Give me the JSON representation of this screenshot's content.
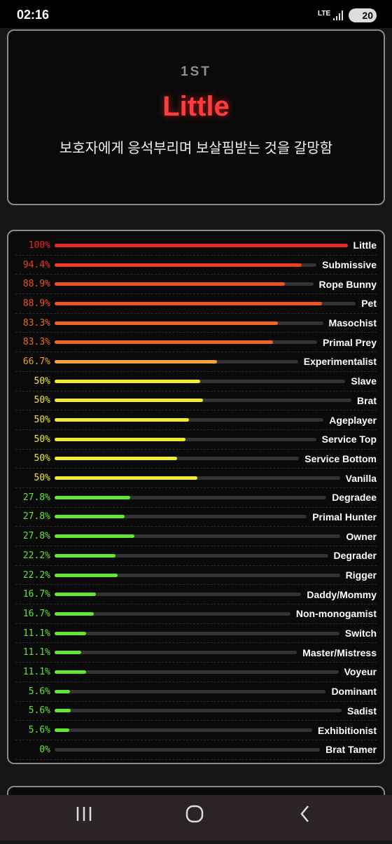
{
  "status_bar": {
    "time": "02:16",
    "network": "LTE",
    "battery": "20"
  },
  "top_result": {
    "rank": "1ST",
    "name": "Little",
    "description": "보호자에게 응석부리며 보살핌받는 것을 갈망함"
  },
  "results": {
    "names": [
      "Little",
      "Submissive",
      "Rope Bunny",
      "Pet",
      "Masochist",
      "Primal Prey",
      "Experimentalist",
      "Slave",
      "Brat",
      "Ageplayer",
      "Service Top",
      "Service Bottom",
      "Vanilla",
      "Degradee",
      "Primal Hunter",
      "Owner",
      "Degrader",
      "Rigger",
      "Daddy/Mommy",
      "Non-monogamist",
      "Switch",
      "Master/Mistress",
      "Voyeur",
      "Dominant",
      "Sadist",
      "Exhibitionist",
      "Brat Tamer"
    ],
    "values": [
      100,
      94.4,
      88.9,
      88.9,
      83.3,
      83.3,
      66.7,
      50,
      50,
      50,
      50,
      50,
      50,
      27.8,
      27.8,
      27.8,
      22.2,
      22.2,
      16.7,
      16.7,
      11.1,
      11.1,
      11.1,
      5.6,
      5.6,
      5.6,
      0
    ],
    "value_labels": [
      "100%",
      "94.4%",
      "88.9%",
      "88.9%",
      "83.3%",
      "83.3%",
      "66.7%",
      "50%",
      "50%",
      "50%",
      "50%",
      "50%",
      "50%",
      "27.8%",
      "27.8%",
      "27.8%",
      "22.2%",
      "22.2%",
      "16.7%",
      "16.7%",
      "11.1%",
      "11.1%",
      "11.1%",
      "5.6%",
      "5.6%",
      "5.6%",
      "0%"
    ],
    "colors": [
      "#ea2a22",
      "#f03e1f",
      "#f2521f",
      "#f2521f",
      "#f26422",
      "#f26422",
      "#f0a332",
      "#f2ea2c",
      "#f2ea2c",
      "#f2ea2c",
      "#f2ea2c",
      "#f2ea2c",
      "#f2ea2c",
      "#62e632",
      "#62e632",
      "#62e632",
      "#62e632",
      "#62e632",
      "#62e632",
      "#62e632",
      "#62e632",
      "#62e632",
      "#62e632",
      "#62e632",
      "#62e632",
      "#62e632",
      "#62e632"
    ]
  }
}
